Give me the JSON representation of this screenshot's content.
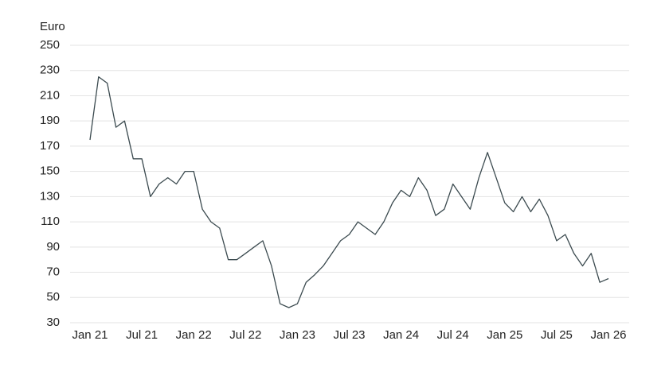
{
  "chart_data": {
    "type": "line",
    "y_label": "Euro",
    "categories": [
      "Jan 21",
      null,
      null,
      null,
      null,
      null,
      "Jul 21",
      null,
      null,
      null,
      null,
      null,
      "Jan 22",
      null,
      null,
      null,
      null,
      null,
      "Jul 22",
      null,
      null,
      null,
      null,
      null,
      "Jan 23",
      null,
      null,
      null,
      null,
      null,
      "Jul 23",
      null,
      null,
      null,
      null,
      null,
      "Jan 24",
      null,
      null,
      null,
      null,
      null,
      "Jul 24",
      null,
      null,
      null,
      null,
      null,
      "Jan 25",
      null,
      null,
      null,
      null,
      null,
      "Jul 25",
      null,
      null,
      null,
      null,
      null,
      "Jan 26"
    ],
    "series": [
      {
        "color": "#3b4a4f",
        "values": [
          175,
          225,
          220,
          185,
          190,
          160,
          160,
          130,
          140,
          145,
          140,
          150,
          150,
          120,
          110,
          105,
          80,
          80,
          85,
          90,
          95,
          75,
          45,
          42,
          45,
          62,
          68,
          75,
          85,
          95,
          100,
          110,
          105,
          100,
          110,
          125,
          135,
          130,
          145,
          135,
          115,
          120,
          140,
          130,
          120,
          145,
          165,
          145,
          125,
          118,
          130,
          118,
          128,
          115,
          95,
          100,
          85,
          75,
          85,
          62,
          65
        ]
      }
    ],
    "ylim": [
      30,
      250
    ],
    "yticks": [
      30,
      50,
      70,
      90,
      110,
      130,
      150,
      170,
      190,
      210,
      230,
      250
    ],
    "grid": true
  }
}
